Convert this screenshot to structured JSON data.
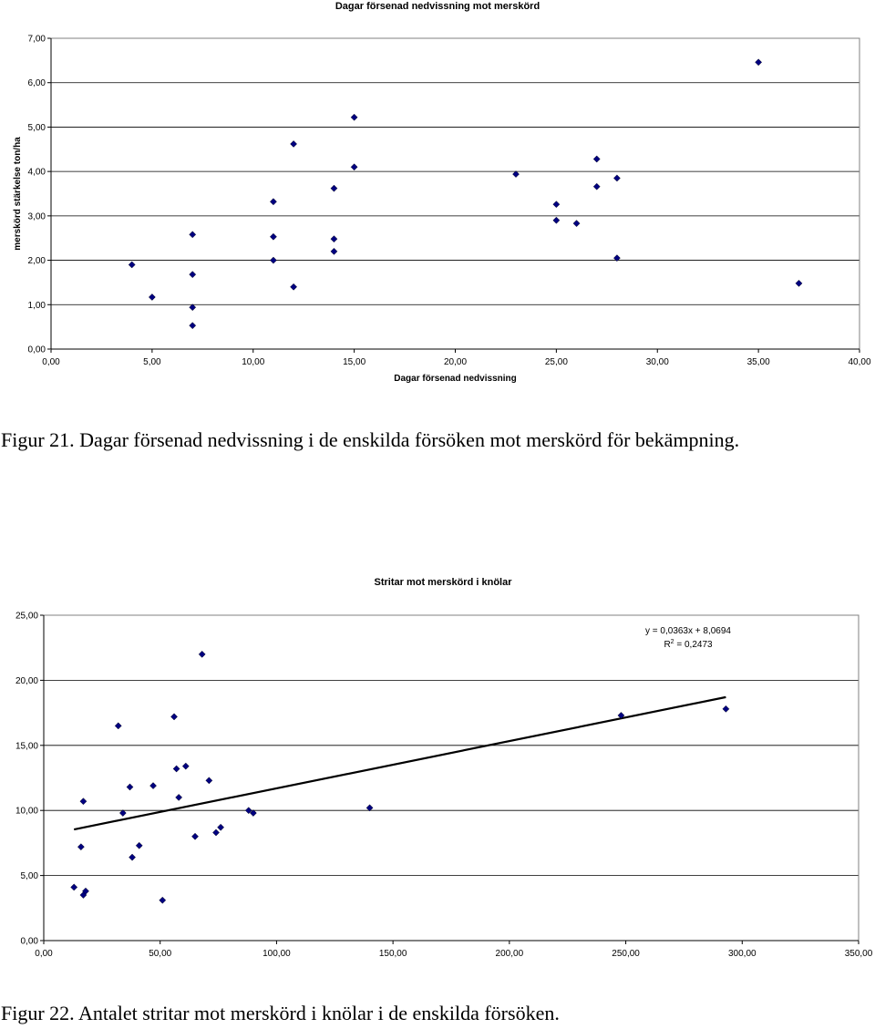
{
  "chart_data": [
    {
      "type": "scatter",
      "title": "Dagar försenad nedvissning mot merskörd",
      "xlabel": "Dagar försenad nedvissning",
      "ylabel": "merskörd stärkelse ton/ha",
      "xlim": [
        0,
        40
      ],
      "ylim": [
        0,
        7
      ],
      "x_ticks": [
        "0,00",
        "5,00",
        "10,00",
        "15,00",
        "20,00",
        "25,00",
        "30,00",
        "35,00",
        "40,00"
      ],
      "y_ticks": [
        "0,00",
        "1,00",
        "2,00",
        "3,00",
        "4,00",
        "5,00",
        "6,00",
        "7,00"
      ],
      "grid": "horizontal",
      "marker_color": "#000080",
      "points": [
        [
          4,
          1.9
        ],
        [
          5,
          1.17
        ],
        [
          7,
          2.58
        ],
        [
          7,
          1.68
        ],
        [
          7,
          0.94
        ],
        [
          7,
          0.53
        ],
        [
          11,
          3.32
        ],
        [
          11,
          2.53
        ],
        [
          11,
          2.0
        ],
        [
          12,
          4.62
        ],
        [
          12,
          1.4
        ],
        [
          14,
          3.62
        ],
        [
          14,
          2.48
        ],
        [
          14,
          2.2
        ],
        [
          15,
          5.22
        ],
        [
          15,
          4.1
        ],
        [
          23,
          3.94
        ],
        [
          25,
          3.26
        ],
        [
          25,
          2.9
        ],
        [
          26,
          2.83
        ],
        [
          27,
          4.28
        ],
        [
          27,
          3.66
        ],
        [
          28,
          3.85
        ],
        [
          28,
          2.05
        ],
        [
          35,
          6.46
        ],
        [
          37,
          1.48
        ]
      ]
    },
    {
      "type": "scatter",
      "title": "Stritar mot merskörd i knölar",
      "xlim": [
        0,
        350
      ],
      "ylim": [
        0,
        25
      ],
      "x_ticks": [
        "0,00",
        "50,00",
        "100,00",
        "150,00",
        "200,00",
        "250,00",
        "300,00",
        "350,00"
      ],
      "y_ticks": [
        "0,00",
        "5,00",
        "10,00",
        "15,00",
        "20,00",
        "25,00"
      ],
      "grid": "horizontal",
      "marker_color": "#000080",
      "trendline": {
        "slope": 0.0363,
        "intercept": 8.0694,
        "x_range": [
          13,
          293
        ],
        "equation": "y = 0,0363x + 8,0694",
        "r2_prefix": "R",
        "r2_sup": "2",
        "r2_value": " = 0,2473"
      },
      "points": [
        [
          13,
          4.1
        ],
        [
          16,
          7.2
        ],
        [
          17,
          10.7
        ],
        [
          17,
          3.5
        ],
        [
          18,
          3.8
        ],
        [
          32,
          16.5
        ],
        [
          34,
          9.8
        ],
        [
          37,
          11.8
        ],
        [
          38,
          6.4
        ],
        [
          41,
          7.3
        ],
        [
          47,
          11.9
        ],
        [
          51,
          3.1
        ],
        [
          56,
          17.2
        ],
        [
          57,
          13.2
        ],
        [
          58,
          11.0
        ],
        [
          61,
          13.4
        ],
        [
          65,
          8.0
        ],
        [
          68,
          22.0
        ],
        [
          71,
          12.3
        ],
        [
          74,
          8.3
        ],
        [
          76,
          8.7
        ],
        [
          88,
          10.0
        ],
        [
          90,
          9.8
        ],
        [
          140,
          10.2
        ],
        [
          248,
          17.3
        ],
        [
          293,
          17.8
        ]
      ]
    }
  ],
  "captions": {
    "fig21": "Figur 21. Dagar försenad nedvissning i de enskilda försöken mot merskörd för bekämpning.",
    "fig22": "Figur 22. Antalet stritar mot merskörd i knölar i de enskilda försöken."
  }
}
